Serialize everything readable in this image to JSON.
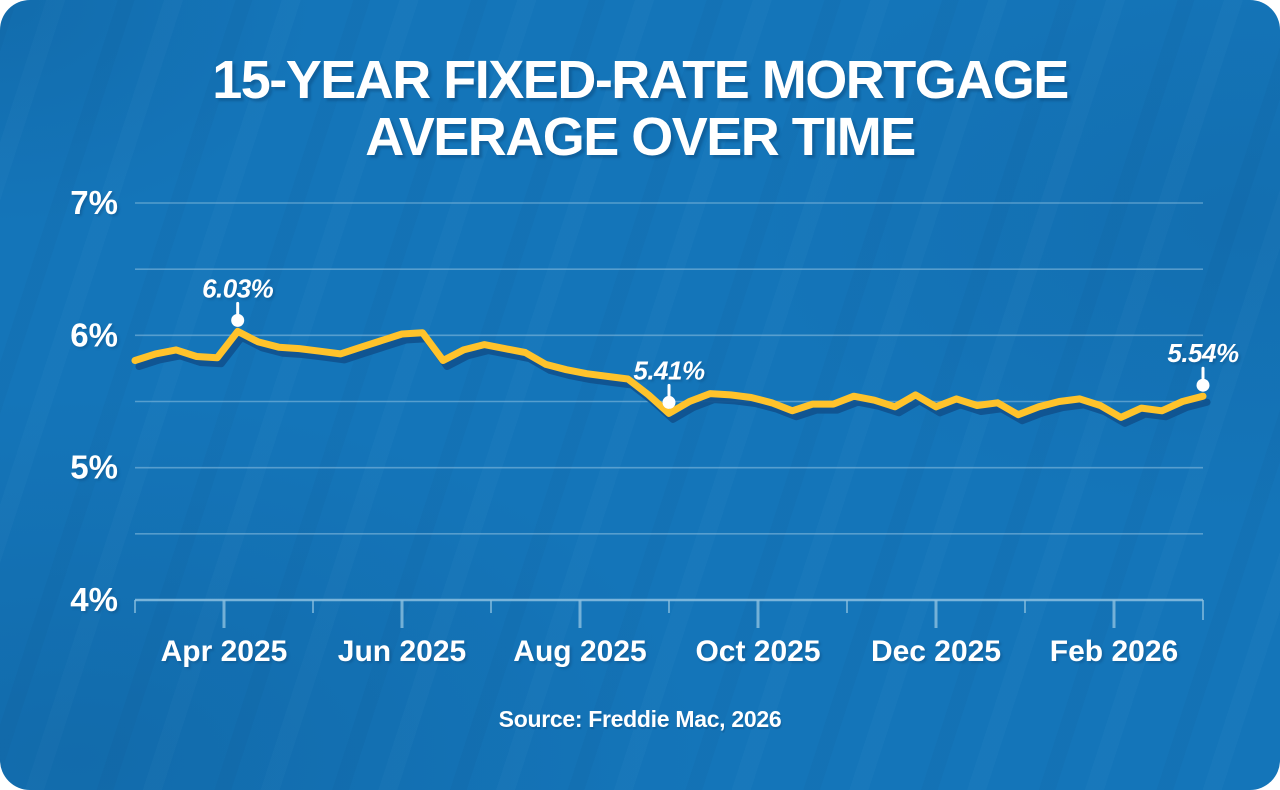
{
  "title_lines": [
    "15-YEAR FIXED-RATE MORTGAGE",
    "AVERAGE OVER TIME"
  ],
  "source_text": "Source: Freddie Mac, 2026",
  "colors": {
    "background": "#1475B9",
    "line": "#FFC32B",
    "line_shadow": "#10538F",
    "grid": "#8CC0E0",
    "text": "#FFFFFF"
  },
  "chart_data": {
    "type": "line",
    "title": "15-Year Fixed-Rate Mortgage Average Over Time",
    "xlabel": "",
    "ylabel": "",
    "ylim": [
      4,
      7
    ],
    "grid": "horizontal",
    "legend": "none",
    "y_tick_labels": [
      "7%",
      "6%",
      "5%",
      "4%"
    ],
    "y_tick_values": [
      7,
      6,
      5,
      4
    ],
    "y_minor_gridlines": [
      6.5,
      5.5,
      4.5
    ],
    "x_tick_labels": [
      "Apr 2025",
      "Jun 2025",
      "Aug 2025",
      "Oct 2025",
      "Dec 2025",
      "Feb 2026"
    ],
    "x_tick_total": 13,
    "x_tick_major_indices": [
      1,
      3,
      5,
      7,
      9,
      11
    ],
    "series": [
      {
        "name": "15-year fixed-rate mortgage average (%)",
        "cadence": "weekly (approx., read from chart)",
        "values": [
          5.81,
          5.86,
          5.89,
          5.84,
          5.83,
          6.03,
          5.95,
          5.91,
          5.9,
          5.88,
          5.86,
          5.91,
          5.96,
          6.01,
          6.02,
          5.81,
          5.89,
          5.93,
          5.9,
          5.87,
          5.78,
          5.74,
          5.71,
          5.69,
          5.67,
          5.55,
          5.41,
          5.5,
          5.56,
          5.55,
          5.53,
          5.49,
          5.43,
          5.48,
          5.48,
          5.54,
          5.51,
          5.46,
          5.55,
          5.46,
          5.52,
          5.47,
          5.49,
          5.4,
          5.46,
          5.5,
          5.52,
          5.47,
          5.38,
          5.45,
          5.43,
          5.5,
          5.54
        ]
      }
    ],
    "annotations": [
      {
        "label": "6.03%",
        "value": 6.03,
        "point_index": 5
      },
      {
        "label": "5.41%",
        "value": 5.41,
        "point_index": 26
      },
      {
        "label": "5.54%",
        "value": 5.54,
        "point_index": 52
      }
    ]
  }
}
